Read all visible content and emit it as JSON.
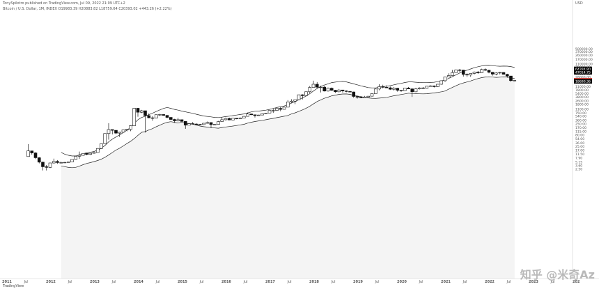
{
  "header": {
    "published": "TonySpilotro published on TradingView.com, Jul 09, 2022 21:09 UTC+2",
    "symbol_line": "Bitcoin / U.S. Dollar, 1M, INDEX  O19983.39  H20883.82  L18759.64  C20393.02  +443.26 (+2.22%)"
  },
  "watermark": "知乎 @米奇Az",
  "logo_text": "TradingView",
  "chart_data": {
    "type": "candlestick",
    "title": "",
    "currency": "USD",
    "y_scale": "log",
    "grid": false,
    "y_ticks": [
      {
        "v": 500000,
        "l": "500000.00"
      },
      {
        "v": 370000,
        "l": "370000.00"
      },
      {
        "v": 260000,
        "l": "260000.00"
      },
      {
        "v": 170000,
        "l": "170000.00"
      },
      {
        "v": 110000,
        "l": "110000.00"
      },
      {
        "v": 78000,
        "l": "78000.00"
      },
      {
        "v": 54000,
        "l": "54000.00"
      },
      {
        "v": 39000,
        "l": "39000.00"
      },
      {
        "v": 28000,
        "l": "28000.00"
      },
      {
        "v": 11000,
        "l": "11000.00"
      },
      {
        "v": 7800,
        "l": "7800.00"
      },
      {
        "v": 5400,
        "l": "5400.00"
      },
      {
        "v": 3800,
        "l": "3800.00"
      },
      {
        "v": 2600,
        "l": "2600.00"
      },
      {
        "v": 1800,
        "l": "1800.00"
      },
      {
        "v": 1100,
        "l": "1100.00"
      },
      {
        "v": 750,
        "l": "750.00"
      },
      {
        "v": 540,
        "l": "540.00"
      },
      {
        "v": 360,
        "l": "360.00"
      },
      {
        "v": 250,
        "l": "250.00"
      },
      {
        "v": 170,
        "l": "170.00"
      },
      {
        "v": 115,
        "l": "115.00"
      },
      {
        "v": 80,
        "l": "80.00"
      },
      {
        "v": 54,
        "l": "54.00"
      },
      {
        "v": 36,
        "l": "36.00"
      },
      {
        "v": 25,
        "l": "25.00"
      },
      {
        "v": 17,
        "l": "17.00"
      },
      {
        "v": 11.5,
        "l": "11.50"
      },
      {
        "v": 7.9,
        "l": "7.90"
      },
      {
        "v": 5.15,
        "l": "5.15"
      },
      {
        "v": 3.6,
        "l": "3.60"
      },
      {
        "v": 2.5,
        "l": "2.50"
      }
    ],
    "price_labels": [
      {
        "v": 64284.8,
        "l": "64284.80",
        "color": "#111111"
      },
      {
        "v": 47014.75,
        "l": "47014.75",
        "color": "#111111"
      },
      {
        "v": 20393.02,
        "l": "20393.02",
        "color": "#e8453c"
      },
      {
        "v": 18690.36,
        "l": "18690.36",
        "color": "#111111"
      }
    ],
    "x_ticks": [
      "2011",
      "Jul",
      "2012",
      "Jul",
      "2013",
      "Jul",
      "2014",
      "Jul",
      "2015",
      "Jul",
      "2016",
      "Jul",
      "2017",
      "Jul",
      "2018",
      "Jul",
      "2019",
      "Jul",
      "2020",
      "Jul",
      "2021",
      "Jul",
      "2022",
      "Jul",
      "2023",
      "Jul",
      "202"
    ],
    "candles": [
      {
        "d": "2011-06",
        "o": 9,
        "h": 32,
        "l": 10,
        "c": 16
      },
      {
        "d": "2011-07",
        "o": 16,
        "h": 16,
        "l": 11,
        "c": 13
      },
      {
        "d": "2011-08",
        "o": 13,
        "h": 14,
        "l": 7,
        "c": 8
      },
      {
        "d": "2011-09",
        "o": 8,
        "h": 8.5,
        "l": 4.5,
        "c": 5.1
      },
      {
        "d": "2011-10",
        "o": 5.1,
        "h": 5.3,
        "l": 2.2,
        "c": 3.2
      },
      {
        "d": "2011-11",
        "o": 3.2,
        "h": 3.8,
        "l": 2.2,
        "c": 3
      },
      {
        "d": "2011-12",
        "o": 3,
        "h": 4.8,
        "l": 2.8,
        "c": 4.7
      },
      {
        "d": "2012-01",
        "o": 4.7,
        "h": 7.3,
        "l": 4.4,
        "c": 5.5
      },
      {
        "d": "2012-02",
        "o": 5.5,
        "h": 6.3,
        "l": 4.3,
        "c": 4.9
      },
      {
        "d": "2012-03",
        "o": 4.9,
        "h": 5.4,
        "l": 4.7,
        "c": 4.9
      },
      {
        "d": "2012-04",
        "o": 4.9,
        "h": 5.2,
        "l": 4.8,
        "c": 5
      },
      {
        "d": "2012-05",
        "o": 5,
        "h": 5.2,
        "l": 4.9,
        "c": 5.2
      },
      {
        "d": "2012-06",
        "o": 5.2,
        "h": 6.8,
        "l": 5.2,
        "c": 6.7
      },
      {
        "d": "2012-07",
        "o": 6.7,
        "h": 9.5,
        "l": 6.5,
        "c": 9.3
      },
      {
        "d": "2012-08",
        "o": 9.3,
        "h": 15,
        "l": 7.2,
        "c": 10.2
      },
      {
        "d": "2012-09",
        "o": 10.2,
        "h": 12.5,
        "l": 9.8,
        "c": 12.4
      },
      {
        "d": "2012-10",
        "o": 12.4,
        "h": 12.8,
        "l": 10.3,
        "c": 11.2
      },
      {
        "d": "2012-11",
        "o": 11.2,
        "h": 12.6,
        "l": 10.5,
        "c": 12.6
      },
      {
        "d": "2012-12",
        "o": 12.6,
        "h": 13.9,
        "l": 12.1,
        "c": 13.5
      },
      {
        "d": "2013-01",
        "o": 13.5,
        "h": 21,
        "l": 13.2,
        "c": 20.4
      },
      {
        "d": "2013-02",
        "o": 20.4,
        "h": 33,
        "l": 19.5,
        "c": 33
      },
      {
        "d": "2013-03",
        "o": 33,
        "h": 95,
        "l": 33,
        "c": 93
      },
      {
        "d": "2013-04",
        "o": 93,
        "h": 266,
        "l": 50,
        "c": 139
      },
      {
        "d": "2013-05",
        "o": 139,
        "h": 140,
        "l": 85,
        "c": 129
      },
      {
        "d": "2013-06",
        "o": 129,
        "h": 130,
        "l": 88,
        "c": 97
      },
      {
        "d": "2013-07",
        "o": 97,
        "h": 110,
        "l": 65,
        "c": 106
      },
      {
        "d": "2013-08",
        "o": 106,
        "h": 139,
        "l": 103,
        "c": 135
      },
      {
        "d": "2013-09",
        "o": 135,
        "h": 146,
        "l": 116,
        "c": 141
      },
      {
        "d": "2013-10",
        "o": 141,
        "h": 215,
        "l": 118,
        "c": 206
      },
      {
        "d": "2013-11",
        "o": 206,
        "h": 1242,
        "l": 205,
        "c": 1205
      },
      {
        "d": "2013-12",
        "o": 1205,
        "h": 1240,
        "l": 510,
        "c": 805
      },
      {
        "d": "2014-01",
        "o": 805,
        "h": 1020,
        "l": 740,
        "c": 938
      },
      {
        "d": "2014-02",
        "o": 938,
        "h": 940,
        "l": 102,
        "c": 573
      },
      {
        "d": "2014-03",
        "o": 573,
        "h": 710,
        "l": 440,
        "c": 458
      },
      {
        "d": "2014-04",
        "o": 458,
        "h": 545,
        "l": 340,
        "c": 445
      },
      {
        "d": "2014-05",
        "o": 445,
        "h": 630,
        "l": 435,
        "c": 629
      },
      {
        "d": "2014-06",
        "o": 629,
        "h": 680,
        "l": 555,
        "c": 640
      },
      {
        "d": "2014-07",
        "o": 640,
        "h": 655,
        "l": 565,
        "c": 586
      },
      {
        "d": "2014-08",
        "o": 586,
        "h": 600,
        "l": 440,
        "c": 478
      },
      {
        "d": "2014-09",
        "o": 478,
        "h": 495,
        "l": 370,
        "c": 387
      },
      {
        "d": "2014-10",
        "o": 387,
        "h": 415,
        "l": 275,
        "c": 338
      },
      {
        "d": "2014-11",
        "o": 338,
        "h": 460,
        "l": 315,
        "c": 378
      },
      {
        "d": "2014-12",
        "o": 378,
        "h": 383,
        "l": 310,
        "c": 318
      },
      {
        "d": "2015-01",
        "o": 318,
        "h": 320,
        "l": 150,
        "c": 217
      },
      {
        "d": "2015-02",
        "o": 217,
        "h": 265,
        "l": 210,
        "c": 254
      },
      {
        "d": "2015-03",
        "o": 254,
        "h": 300,
        "l": 235,
        "c": 244
      },
      {
        "d": "2015-04",
        "o": 244,
        "h": 261,
        "l": 215,
        "c": 236
      },
      {
        "d": "2015-05",
        "o": 236,
        "h": 247,
        "l": 225,
        "c": 230
      },
      {
        "d": "2015-06",
        "o": 230,
        "h": 268,
        "l": 220,
        "c": 263
      },
      {
        "d": "2015-07",
        "o": 263,
        "h": 315,
        "l": 255,
        "c": 284
      },
      {
        "d": "2015-08",
        "o": 284,
        "h": 285,
        "l": 162,
        "c": 230
      },
      {
        "d": "2015-09",
        "o": 230,
        "h": 246,
        "l": 225,
        "c": 236
      },
      {
        "d": "2015-10",
        "o": 236,
        "h": 335,
        "l": 235,
        "c": 314
      },
      {
        "d": "2015-11",
        "o": 314,
        "h": 500,
        "l": 307,
        "c": 377
      },
      {
        "d": "2015-12",
        "o": 377,
        "h": 467,
        "l": 350,
        "c": 430
      },
      {
        "d": "2016-01",
        "o": 430,
        "h": 465,
        "l": 360,
        "c": 368
      },
      {
        "d": "2016-02",
        "o": 368,
        "h": 440,
        "l": 365,
        "c": 437
      },
      {
        "d": "2016-03",
        "o": 437,
        "h": 440,
        "l": 395,
        "c": 416
      },
      {
        "d": "2016-04",
        "o": 416,
        "h": 470,
        "l": 415,
        "c": 448
      },
      {
        "d": "2016-05",
        "o": 448,
        "h": 550,
        "l": 440,
        "c": 531
      },
      {
        "d": "2016-06",
        "o": 531,
        "h": 780,
        "l": 530,
        "c": 673
      },
      {
        "d": "2016-07",
        "o": 673,
        "h": 705,
        "l": 600,
        "c": 624
      },
      {
        "d": "2016-08",
        "o": 624,
        "h": 625,
        "l": 470,
        "c": 573
      },
      {
        "d": "2016-09",
        "o": 573,
        "h": 625,
        "l": 570,
        "c": 608
      },
      {
        "d": "2016-10",
        "o": 608,
        "h": 720,
        "l": 605,
        "c": 700
      },
      {
        "d": "2016-11",
        "o": 700,
        "h": 755,
        "l": 680,
        "c": 743
      },
      {
        "d": "2016-12",
        "o": 743,
        "h": 975,
        "l": 740,
        "c": 964
      },
      {
        "d": "2017-01",
        "o": 964,
        "h": 1150,
        "l": 750,
        "c": 965
      },
      {
        "d": "2017-02",
        "o": 965,
        "h": 1210,
        "l": 920,
        "c": 1190
      },
      {
        "d": "2017-03",
        "o": 1190,
        "h": 1350,
        "l": 890,
        "c": 1080
      },
      {
        "d": "2017-04",
        "o": 1080,
        "h": 1450,
        "l": 1070,
        "c": 1350
      },
      {
        "d": "2017-05",
        "o": 1350,
        "h": 2760,
        "l": 1330,
        "c": 2300
      },
      {
        "d": "2017-06",
        "o": 2300,
        "h": 3000,
        "l": 2100,
        "c": 2480
      },
      {
        "d": "2017-07",
        "o": 2480,
        "h": 2920,
        "l": 1830,
        "c": 2870
      },
      {
        "d": "2017-08",
        "o": 2870,
        "h": 4750,
        "l": 2700,
        "c": 4730
      },
      {
        "d": "2017-09",
        "o": 4730,
        "h": 5000,
        "l": 2950,
        "c": 4350
      },
      {
        "d": "2017-10",
        "o": 4350,
        "h": 6470,
        "l": 4110,
        "c": 6450
      },
      {
        "d": "2017-11",
        "o": 6450,
        "h": 11500,
        "l": 5500,
        "c": 10000
      },
      {
        "d": "2017-12",
        "o": 10000,
        "h": 19800,
        "l": 10000,
        "c": 13800
      },
      {
        "d": "2018-01",
        "o": 13800,
        "h": 17200,
        "l": 9400,
        "c": 10200
      },
      {
        "d": "2018-02",
        "o": 10200,
        "h": 11800,
        "l": 6000,
        "c": 10300
      },
      {
        "d": "2018-03",
        "o": 10300,
        "h": 11700,
        "l": 6600,
        "c": 6900
      },
      {
        "d": "2018-04",
        "o": 6900,
        "h": 9800,
        "l": 6500,
        "c": 9200
      },
      {
        "d": "2018-05",
        "o": 9200,
        "h": 9900,
        "l": 7000,
        "c": 7500
      },
      {
        "d": "2018-06",
        "o": 7500,
        "h": 7800,
        "l": 5750,
        "c": 6400
      },
      {
        "d": "2018-07",
        "o": 6400,
        "h": 8500,
        "l": 6100,
        "c": 7700
      },
      {
        "d": "2018-08",
        "o": 7700,
        "h": 7800,
        "l": 5900,
        "c": 7000
      },
      {
        "d": "2018-09",
        "o": 7000,
        "h": 7400,
        "l": 6100,
        "c": 6600
      },
      {
        "d": "2018-10",
        "o": 6600,
        "h": 7000,
        "l": 6200,
        "c": 6300
      },
      {
        "d": "2018-11",
        "o": 6300,
        "h": 6500,
        "l": 3500,
        "c": 4000
      },
      {
        "d": "2018-12",
        "o": 4000,
        "h": 4300,
        "l": 3200,
        "c": 3700
      },
      {
        "d": "2019-01",
        "o": 3700,
        "h": 4100,
        "l": 3400,
        "c": 3450
      },
      {
        "d": "2019-02",
        "o": 3450,
        "h": 4200,
        "l": 3400,
        "c": 3800
      },
      {
        "d": "2019-03",
        "o": 3800,
        "h": 4100,
        "l": 3700,
        "c": 4100
      },
      {
        "d": "2019-04",
        "o": 4100,
        "h": 5600,
        "l": 4100,
        "c": 5300
      },
      {
        "d": "2019-05",
        "o": 5300,
        "h": 9000,
        "l": 5300,
        "c": 8500
      },
      {
        "d": "2019-06",
        "o": 8500,
        "h": 13800,
        "l": 7500,
        "c": 10800
      },
      {
        "d": "2019-07",
        "o": 10800,
        "h": 13100,
        "l": 9100,
        "c": 10100
      },
      {
        "d": "2019-08",
        "o": 10100,
        "h": 12300,
        "l": 9300,
        "c": 9600
      },
      {
        "d": "2019-09",
        "o": 9600,
        "h": 10900,
        "l": 7700,
        "c": 8300
      },
      {
        "d": "2019-10",
        "o": 8300,
        "h": 10400,
        "l": 7300,
        "c": 9200
      },
      {
        "d": "2019-11",
        "o": 9200,
        "h": 9500,
        "l": 6500,
        "c": 7500
      },
      {
        "d": "2019-12",
        "o": 7500,
        "h": 7700,
        "l": 6400,
        "c": 7200
      },
      {
        "d": "2020-01",
        "o": 7200,
        "h": 9600,
        "l": 6900,
        "c": 9400
      },
      {
        "d": "2020-02",
        "o": 9400,
        "h": 10500,
        "l": 8400,
        "c": 8600
      },
      {
        "d": "2020-03",
        "o": 8600,
        "h": 9200,
        "l": 3800,
        "c": 6400
      },
      {
        "d": "2020-04",
        "o": 6400,
        "h": 9500,
        "l": 6200,
        "c": 8700
      },
      {
        "d": "2020-05",
        "o": 8700,
        "h": 10100,
        "l": 8100,
        "c": 9500
      },
      {
        "d": "2020-06",
        "o": 9500,
        "h": 10400,
        "l": 8900,
        "c": 9100
      },
      {
        "d": "2020-07",
        "o": 9100,
        "h": 11400,
        "l": 8900,
        "c": 11300
      },
      {
        "d": "2020-08",
        "o": 11300,
        "h": 12500,
        "l": 11000,
        "c": 11700
      },
      {
        "d": "2020-09",
        "o": 11700,
        "h": 12100,
        "l": 9900,
        "c": 10800
      },
      {
        "d": "2020-10",
        "o": 10800,
        "h": 14000,
        "l": 10400,
        "c": 13800
      },
      {
        "d": "2020-11",
        "o": 13800,
        "h": 19900,
        "l": 13200,
        "c": 19700
      },
      {
        "d": "2020-12",
        "o": 19700,
        "h": 29300,
        "l": 17600,
        "c": 29000
      },
      {
        "d": "2021-01",
        "o": 29000,
        "h": 41900,
        "l": 28100,
        "c": 33100
      },
      {
        "d": "2021-02",
        "o": 33100,
        "h": 58300,
        "l": 32300,
        "c": 45200
      },
      {
        "d": "2021-03",
        "o": 45200,
        "h": 61800,
        "l": 44900,
        "c": 58800
      },
      {
        "d": "2021-04",
        "o": 58800,
        "h": 64800,
        "l": 47000,
        "c": 57700
      },
      {
        "d": "2021-05",
        "o": 57700,
        "h": 59500,
        "l": 30000,
        "c": 37300
      },
      {
        "d": "2021-06",
        "o": 37300,
        "h": 41300,
        "l": 28800,
        "c": 35000
      },
      {
        "d": "2021-07",
        "o": 35000,
        "h": 42400,
        "l": 29300,
        "c": 41500
      },
      {
        "d": "2021-08",
        "o": 41500,
        "h": 50500,
        "l": 37300,
        "c": 47100
      },
      {
        "d": "2021-09",
        "o": 47100,
        "h": 52900,
        "l": 39600,
        "c": 43800
      },
      {
        "d": "2021-10",
        "o": 43800,
        "h": 67000,
        "l": 43300,
        "c": 61300
      },
      {
        "d": "2021-11",
        "o": 61300,
        "h": 69000,
        "l": 53300,
        "c": 57000
      },
      {
        "d": "2021-12",
        "o": 57000,
        "h": 59100,
        "l": 42000,
        "c": 46300
      },
      {
        "d": "2022-01",
        "o": 46300,
        "h": 47900,
        "l": 32900,
        "c": 38500
      },
      {
        "d": "2022-02",
        "o": 38500,
        "h": 45800,
        "l": 34300,
        "c": 43200
      },
      {
        "d": "2022-03",
        "o": 43200,
        "h": 48200,
        "l": 37200,
        "c": 45500
      },
      {
        "d": "2022-04",
        "o": 45500,
        "h": 47400,
        "l": 37700,
        "c": 37700
      },
      {
        "d": "2022-05",
        "o": 37700,
        "h": 40000,
        "l": 26700,
        "c": 31800
      },
      {
        "d": "2022-06",
        "o": 31800,
        "h": 31900,
        "l": 17600,
        "c": 19900
      },
      {
        "d": "2022-07",
        "o": 19983.39,
        "h": 20883.82,
        "l": 18759.64,
        "c": 20393.02
      }
    ]
  }
}
